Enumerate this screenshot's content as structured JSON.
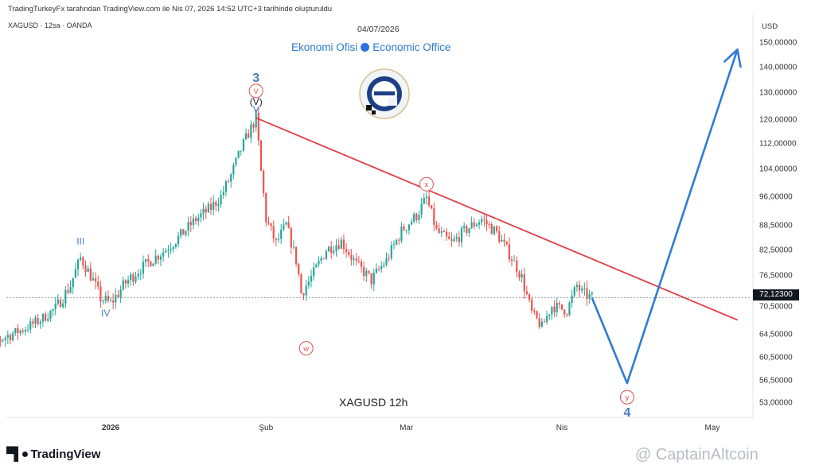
{
  "header_text": "TradingTurkeyFx tarafından TradingView.com ile Nis 07, 2026 14:52 UTC+3 tarihinde oluşturuldu",
  "symbol_text": "XAGUSD · 12sa · OANDA",
  "date_text": "04/07/2026",
  "office": {
    "left": "Ekonomi Ofisi",
    "right": "Economic Office"
  },
  "timeframe_label": "XAGUSD   12h",
  "tradingview_logo": "TradingView",
  "watermark": "@ CaptainAltcoin",
  "colors": {
    "up": "#26a69a",
    "down": "#ef5350",
    "trendline": "#e0404a",
    "projection": "#2f7bd3",
    "wave_label": "#4a7bc4",
    "circle_label": "#e05050"
  },
  "chart_data": {
    "type": "candlestick",
    "title": "",
    "xlabel": "",
    "ylabel": "",
    "currency": "USD",
    "symbol": "XAGUSD",
    "timeframe": "12h",
    "x_range": [
      "2025-12-05",
      "2026-05-12"
    ],
    "y_ticks": [
      150,
      140,
      130,
      120,
      112,
      104,
      96,
      88.5,
      82.5,
      76.5,
      70.5,
      64.5,
      60.5,
      56.5,
      53
    ],
    "y_tick_labels": [
      "150,00000",
      "140,00000",
      "130,00000",
      "120,00000",
      "112,00000",
      "104,00000",
      "96,00000",
      "88,50000",
      "82,50000",
      "76,50000",
      "70,50000",
      "64,50000",
      "60,50000",
      "56,50000",
      "53,00000"
    ],
    "x_ticks": [
      {
        "date": "2026-01-01",
        "label": "2026"
      },
      {
        "date": "2026-02-01",
        "label": "Şub"
      },
      {
        "date": "2026-03-01",
        "label": "Mar"
      },
      {
        "date": "2026-04-01",
        "label": "Nis"
      },
      {
        "date": "2026-05-01",
        "label": "May"
      }
    ],
    "current_price": 72.123,
    "current_price_label": "72,12300",
    "price_path": [
      [
        "2025-12-05",
        62.5
      ],
      [
        "2025-12-10",
        63.6
      ],
      [
        "2025-12-14",
        65.2
      ],
      [
        "2025-12-18",
        67.5
      ],
      [
        "2025-12-21",
        70.0
      ],
      [
        "2025-12-24",
        74.5
      ],
      [
        "2025-12-26",
        80.5
      ],
      [
        "2025-12-28",
        76.5
      ],
      [
        "2025-12-30",
        72.0
      ],
      [
        "2026-01-01",
        71.0
      ],
      [
        "2026-01-04",
        75.0
      ],
      [
        "2026-01-08",
        79.0
      ],
      [
        "2026-01-12",
        82.5
      ],
      [
        "2026-01-15",
        86.0
      ],
      [
        "2026-01-18",
        90.0
      ],
      [
        "2026-01-21",
        93.0
      ],
      [
        "2026-01-23",
        96.0
      ],
      [
        "2026-01-25",
        102.0
      ],
      [
        "2026-01-27",
        110.0
      ],
      [
        "2026-01-29",
        117.0
      ],
      [
        "2026-01-30",
        120.5
      ],
      [
        "2026-01-31",
        103.0
      ],
      [
        "2026-02-01",
        90.0
      ],
      [
        "2026-02-03",
        84.0
      ],
      [
        "2026-02-05",
        88.5
      ],
      [
        "2026-02-07",
        80.0
      ],
      [
        "2026-02-08",
        73.0
      ],
      [
        "2026-02-10",
        76.0
      ],
      [
        "2026-02-13",
        82.5
      ],
      [
        "2026-02-16",
        84.5
      ],
      [
        "2026-02-19",
        79.0
      ],
      [
        "2026-02-22",
        75.5
      ],
      [
        "2026-02-25",
        80.0
      ],
      [
        "2026-02-28",
        87.0
      ],
      [
        "2026-03-03",
        91.0
      ],
      [
        "2026-03-05",
        95.5
      ],
      [
        "2026-03-07",
        87.0
      ],
      [
        "2026-03-10",
        84.0
      ],
      [
        "2026-03-13",
        87.5
      ],
      [
        "2026-03-16",
        90.0
      ],
      [
        "2026-03-19",
        86.5
      ],
      [
        "2026-03-22",
        80.5
      ],
      [
        "2026-03-24",
        76.0
      ],
      [
        "2026-03-26",
        69.0
      ],
      [
        "2026-03-28",
        66.0
      ],
      [
        "2026-03-30",
        70.5
      ],
      [
        "2026-04-02",
        69.5
      ],
      [
        "2026-04-04",
        74.5
      ],
      [
        "2026-04-05",
        73.0
      ],
      [
        "2026-04-07",
        72.1
      ]
    ],
    "trendline": {
      "from": [
        "2026-01-30",
        120.5
      ],
      "to": [
        "2026-05-06",
        67.5
      ]
    },
    "projection": [
      [
        "2026-04-07",
        72.1
      ],
      [
        "2026-04-14",
        56.0
      ],
      [
        "2026-05-06",
        147.0
      ]
    ],
    "wave_labels": [
      {
        "text": "3",
        "date": "2026-01-30",
        "price": 136,
        "style": "big-blue"
      },
      {
        "text": "V",
        "date": "2026-01-30",
        "price": 130.5,
        "style": "circle"
      },
      {
        "text": "(V)",
        "date": "2026-01-30",
        "price": 126.5,
        "style": "black"
      },
      {
        "text": "V",
        "date": "2026-01-30",
        "price": 123.5,
        "style": "blue"
      },
      {
        "text": "III",
        "date": "2025-12-26",
        "price": 84.5,
        "style": "blue"
      },
      {
        "text": "IV",
        "date": "2025-12-31",
        "price": 69.0,
        "style": "blue"
      },
      {
        "text": "W",
        "date": "2026-02-09",
        "price": 62.0,
        "style": "circle"
      },
      {
        "text": "X",
        "date": "2026-03-05",
        "price": 99.5,
        "style": "circle"
      },
      {
        "text": "Y",
        "date": "2026-04-14",
        "price": 53.8,
        "style": "circle"
      },
      {
        "text": "4",
        "date": "2026-04-14",
        "price": 51.5,
        "style": "big-blue"
      }
    ]
  }
}
